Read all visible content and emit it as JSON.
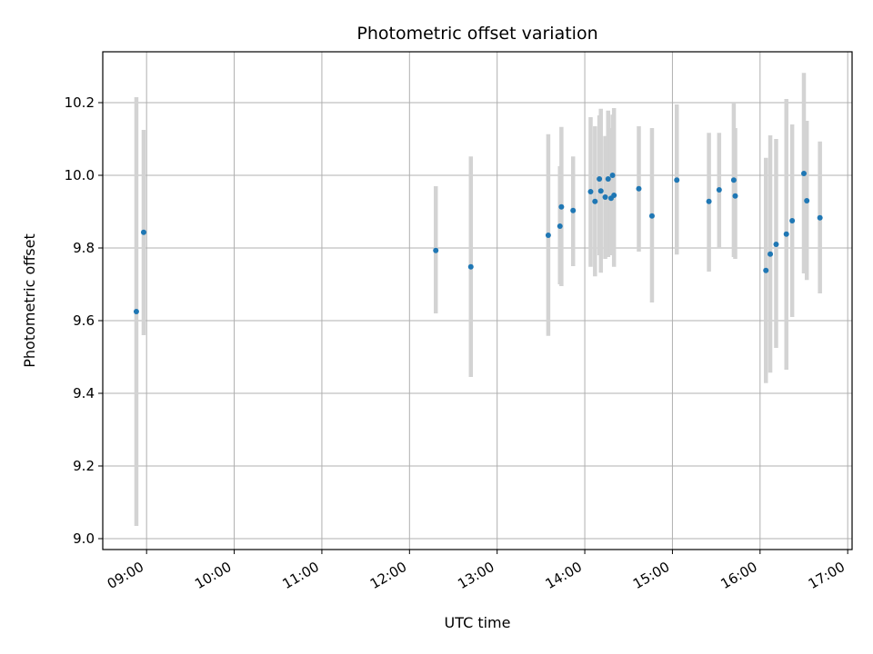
{
  "chart_data": {
    "type": "scatter",
    "title": "Photometric offset variation",
    "xlabel": "UTC time",
    "ylabel": "Photometric offset",
    "x_tick_labels": [
      "09:00",
      "10:00",
      "11:00",
      "12:00",
      "13:00",
      "14:00",
      "15:00",
      "16:00",
      "17:00"
    ],
    "y_tick_labels": [
      "9.0",
      "9.2",
      "9.4",
      "9.6",
      "9.8",
      "10.0",
      "10.2"
    ],
    "xlim": [
      "08:30",
      "17:03"
    ],
    "ylim": [
      8.97,
      10.34
    ],
    "grid": true,
    "error_bars": true,
    "points": [
      {
        "time": "08:53",
        "y": 9.625,
        "err_low": 9.035,
        "err_high": 10.215
      },
      {
        "time": "08:58",
        "y": 9.843,
        "err_low": 9.56,
        "err_high": 10.125
      },
      {
        "time": "12:18",
        "y": 9.793,
        "err_low": 9.62,
        "err_high": 9.97
      },
      {
        "time": "12:42",
        "y": 9.748,
        "err_low": 9.445,
        "err_high": 10.052
      },
      {
        "time": "13:35",
        "y": 9.835,
        "err_low": 9.558,
        "err_high": 10.113
      },
      {
        "time": "13:43",
        "y": 9.86,
        "err_low": 9.7,
        "err_high": 10.025
      },
      {
        "time": "13:44",
        "y": 9.913,
        "err_low": 9.695,
        "err_high": 10.133
      },
      {
        "time": "13:52",
        "y": 9.903,
        "err_low": 9.75,
        "err_high": 10.052
      },
      {
        "time": "14:04",
        "y": 9.955,
        "err_low": 9.748,
        "err_high": 10.16
      },
      {
        "time": "14:07",
        "y": 9.928,
        "err_low": 9.722,
        "err_high": 10.135
      },
      {
        "time": "14:10",
        "y": 9.99,
        "err_low": 9.78,
        "err_high": 10.165
      },
      {
        "time": "14:11",
        "y": 9.957,
        "err_low": 9.732,
        "err_high": 10.183
      },
      {
        "time": "14:14",
        "y": 9.94,
        "err_low": 9.77,
        "err_high": 10.108
      },
      {
        "time": "14:16",
        "y": 9.99,
        "err_low": 9.775,
        "err_high": 10.178
      },
      {
        "time": "14:18",
        "y": 9.937,
        "err_low": 9.78,
        "err_high": 10.13
      },
      {
        "time": "14:19",
        "y": 10.0,
        "err_low": 9.84,
        "err_high": 10.167
      },
      {
        "time": "14:20",
        "y": 9.945,
        "err_low": 9.748,
        "err_high": 10.185
      },
      {
        "time": "14:37",
        "y": 9.963,
        "err_low": 9.79,
        "err_high": 10.135
      },
      {
        "time": "14:46",
        "y": 9.888,
        "err_low": 9.65,
        "err_high": 10.13
      },
      {
        "time": "15:03",
        "y": 9.987,
        "err_low": 9.782,
        "err_high": 10.195
      },
      {
        "time": "15:25",
        "y": 9.928,
        "err_low": 9.735,
        "err_high": 10.117
      },
      {
        "time": "15:32",
        "y": 9.96,
        "err_low": 9.8,
        "err_high": 10.117
      },
      {
        "time": "15:42",
        "y": 9.987,
        "err_low": 9.775,
        "err_high": 10.2
      },
      {
        "time": "15:43",
        "y": 9.943,
        "err_low": 9.77,
        "err_high": 10.13
      },
      {
        "time": "16:04",
        "y": 9.738,
        "err_low": 9.428,
        "err_high": 10.048
      },
      {
        "time": "16:07",
        "y": 9.783,
        "err_low": 9.457,
        "err_high": 10.11
      },
      {
        "time": "16:11",
        "y": 9.81,
        "err_low": 9.525,
        "err_high": 10.1
      },
      {
        "time": "16:18",
        "y": 9.838,
        "err_low": 9.465,
        "err_high": 10.21
      },
      {
        "time": "16:22",
        "y": 9.875,
        "err_low": 9.61,
        "err_high": 10.14
      },
      {
        "time": "16:30",
        "y": 10.005,
        "err_low": 9.73,
        "err_high": 10.282
      },
      {
        "time": "16:32",
        "y": 9.93,
        "err_low": 9.712,
        "err_high": 10.15
      },
      {
        "time": "16:41",
        "y": 9.883,
        "err_low": 9.675,
        "err_high": 10.093
      }
    ],
    "colors": {
      "point": "#1f77b4",
      "error_bar": "#d3d3d3",
      "grid": "#b0b0b0",
      "axes": "#000000"
    }
  }
}
